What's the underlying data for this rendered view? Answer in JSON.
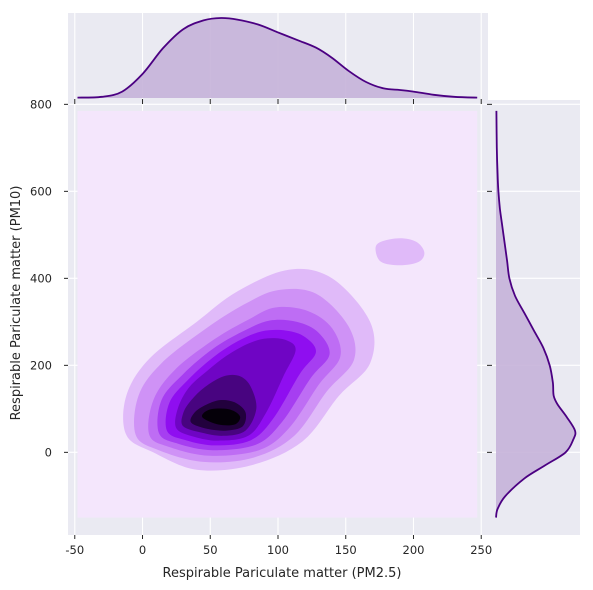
{
  "chart_data": {
    "type": "jointplot-kde",
    "xlabel": "Respirable Pariculate matter (PM2.5)",
    "ylabel": "Respirable Pariculate matter (PM10)",
    "xlim": [
      -55,
      255
    ],
    "ylim": [
      -190,
      810
    ],
    "x_ticks": [
      "-50",
      "0",
      "50",
      "100",
      "150",
      "200",
      "250"
    ],
    "x_tick_values": [
      -50,
      0,
      50,
      100,
      150,
      200,
      250
    ],
    "y_ticks": [
      "0",
      "200",
      "400",
      "600",
      "800"
    ],
    "y_tick_values": [
      0,
      200,
      400,
      600,
      800
    ],
    "kde_grid_x": [
      -48,
      247
    ],
    "kde_grid_y": [
      -150,
      785
    ],
    "grid": true,
    "colors": {
      "background": "#eaeaf2",
      "grid": "#ffffff",
      "line": "#4b0082",
      "fill": "#c5b3d9",
      "contours": [
        "#f4e6fc",
        "#e0baf9",
        "#cf92f6",
        "#be6df4",
        "#a63ef1",
        "#8f0ef0",
        "#6f05c4",
        "#480480",
        "#22013d",
        "#050009"
      ]
    },
    "joint_levels": [
      {
        "level": 1,
        "contours": [
          {
            "points": [
              [
                -12,
                40
              ],
              [
                8,
                0
              ],
              [
                40,
                -40
              ],
              [
                80,
                -30
              ],
              [
                118,
                25
              ],
              [
                145,
                130
              ],
              [
                168,
                205
              ],
              [
                168,
                300
              ],
              [
                140,
                400
              ],
              [
                108,
                420
              ],
              [
                70,
                370
              ],
              [
                40,
                300
              ],
              [
                5,
                215
              ],
              [
                -12,
                130
              ]
            ]
          },
          {
            "points": [
              [
                172,
                468
              ],
              [
                176,
                438
              ],
              [
                190,
                430
              ],
              [
                204,
                438
              ],
              [
                208,
                460
              ],
              [
                202,
                484
              ],
              [
                190,
                492
              ],
              [
                176,
                484
              ]
            ]
          }
        ]
      },
      {
        "level": 2,
        "contours": [
          {
            "points": [
              [
                -5,
                40
              ],
              [
                12,
                5
              ],
              [
                45,
                -22
              ],
              [
                82,
                -12
              ],
              [
                112,
                38
              ],
              [
                136,
                140
              ],
              [
                156,
                212
              ],
              [
                152,
                290
              ],
              [
                128,
                365
              ],
              [
                100,
                373
              ],
              [
                75,
                340
              ],
              [
                47,
                285
              ],
              [
                14,
                205
              ],
              [
                -3,
                130
              ]
            ]
          }
        ]
      },
      {
        "level": 3,
        "contours": [
          {
            "points": [
              [
                5,
                40
              ],
              [
                20,
                12
              ],
              [
                50,
                -8
              ],
              [
                86,
                5
              ],
              [
                108,
                55
              ],
              [
                130,
                155
              ],
              [
                146,
                220
              ],
              [
                140,
                285
              ],
              [
                122,
                325
              ],
              [
                98,
                333
              ],
              [
                78,
                305
              ],
              [
                53,
                260
              ],
              [
                24,
                190
              ],
              [
                8,
                120
              ]
            ]
          }
        ]
      },
      {
        "level": 4,
        "contours": [
          {
            "points": [
              [
                12,
                45
              ],
              [
                26,
                20
              ],
              [
                52,
                5
              ],
              [
                84,
                18
              ],
              [
                103,
                70
              ],
              [
                124,
                170
              ],
              [
                138,
                225
              ],
              [
                130,
                275
              ],
              [
                114,
                300
              ],
              [
                94,
                303
              ],
              [
                74,
                278
              ],
              [
                52,
                238
              ],
              [
                30,
                180
              ],
              [
                14,
                120
              ]
            ]
          }
        ]
      },
      {
        "level": 5,
        "contours": [
          {
            "points": [
              [
                18,
                50
              ],
              [
                32,
                28
              ],
              [
                54,
                16
              ],
              [
                80,
                28
              ],
              [
                97,
                80
              ],
              [
                116,
                180
              ],
              [
                128,
                230
              ],
              [
                120,
                265
              ],
              [
                106,
                280
              ],
              [
                88,
                278
              ],
              [
                70,
                255
              ],
              [
                52,
                218
              ],
              [
                34,
                168
              ],
              [
                20,
                115
              ]
            ]
          }
        ]
      },
      {
        "level": 6,
        "contours": [
          {
            "points": [
              [
                25,
                55
              ],
              [
                38,
                36
              ],
              [
                56,
                27
              ],
              [
                78,
                38
              ],
              [
                91,
                90
              ],
              [
                104,
                175
              ],
              [
                113,
                235
              ],
              [
                106,
                258
              ],
              [
                92,
                262
              ],
              [
                78,
                250
              ],
              [
                62,
                222
              ],
              [
                48,
                188
              ],
              [
                34,
                148
              ],
              [
                26,
                100
              ]
            ]
          }
        ]
      },
      {
        "level": 7,
        "contours": [
          {
            "points": [
              [
                30,
                60
              ],
              [
                44,
                45
              ],
              [
                60,
                38
              ],
              [
                76,
                50
              ],
              [
                84,
                100
              ],
              [
                80,
                150
              ],
              [
                72,
                175
              ],
              [
                60,
                175
              ],
              [
                46,
                150
              ],
              [
                36,
                120
              ],
              [
                30,
                90
              ]
            ]
          }
        ]
      },
      {
        "level": 8,
        "contours": [
          {
            "points": [
              [
                36,
                68
              ],
              [
                48,
                54
              ],
              [
                62,
                50
              ],
              [
                74,
                60
              ],
              [
                76,
                92
              ],
              [
                68,
                115
              ],
              [
                57,
                120
              ],
              [
                46,
                108
              ],
              [
                38,
                90
              ]
            ]
          }
        ]
      },
      {
        "level": 9,
        "contours": [
          {
            "points": [
              [
                45,
                78
              ],
              [
                56,
                64
              ],
              [
                68,
                64
              ],
              [
                72,
                82
              ],
              [
                65,
                98
              ],
              [
                52,
                100
              ],
              [
                45,
                90
              ]
            ]
          }
        ]
      }
    ],
    "marginal_x": {
      "points": [
        [
          -48,
          0.005
        ],
        [
          -30,
          0.015
        ],
        [
          -15,
          0.08
        ],
        [
          0,
          0.3
        ],
        [
          15,
          0.62
        ],
        [
          30,
          0.86
        ],
        [
          45,
          0.97
        ],
        [
          58,
          1.0
        ],
        [
          70,
          0.98
        ],
        [
          85,
          0.92
        ],
        [
          100,
          0.82
        ],
        [
          115,
          0.72
        ],
        [
          128,
          0.63
        ],
        [
          140,
          0.5
        ],
        [
          152,
          0.34
        ],
        [
          165,
          0.2
        ],
        [
          178,
          0.12
        ],
        [
          190,
          0.1
        ],
        [
          200,
          0.08
        ],
        [
          215,
          0.04
        ],
        [
          230,
          0.015
        ],
        [
          247,
          0.005
        ]
      ]
    },
    "marginal_y": {
      "points": [
        [
          -150,
          0.0
        ],
        [
          -130,
          0.02
        ],
        [
          -100,
          0.12
        ],
        [
          -60,
          0.36
        ],
        [
          -30,
          0.62
        ],
        [
          0,
          0.88
        ],
        [
          30,
          0.98
        ],
        [
          50,
          1.0
        ],
        [
          80,
          0.9
        ],
        [
          110,
          0.78
        ],
        [
          130,
          0.73
        ],
        [
          160,
          0.72
        ],
        [
          200,
          0.68
        ],
        [
          240,
          0.6
        ],
        [
          280,
          0.48
        ],
        [
          320,
          0.36
        ],
        [
          360,
          0.24
        ],
        [
          400,
          0.17
        ],
        [
          440,
          0.14
        ],
        [
          480,
          0.11
        ],
        [
          520,
          0.08
        ],
        [
          560,
          0.05
        ],
        [
          600,
          0.03
        ],
        [
          640,
          0.02
        ],
        [
          700,
          0.01
        ],
        [
          785,
          0.005
        ]
      ]
    }
  }
}
